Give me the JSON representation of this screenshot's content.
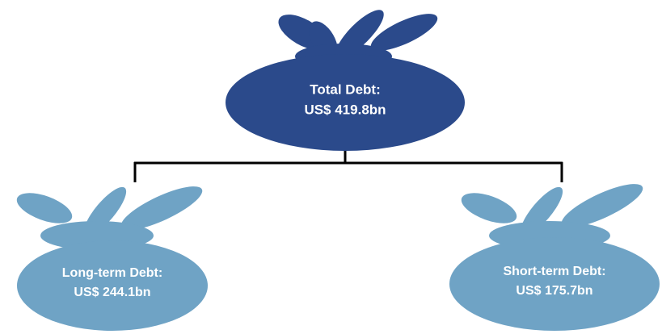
{
  "nodes": [
    {
      "lines": [
        "Total Debt:",
        "US$ 419.8bn"
      ]
    },
    {
      "lines": [
        "Long-term Debt:",
        "US$ 244.1bn"
      ]
    },
    {
      "lines": [
        "Short-term Debt:",
        "US$ 175.7bn"
      ]
    }
  ]
}
